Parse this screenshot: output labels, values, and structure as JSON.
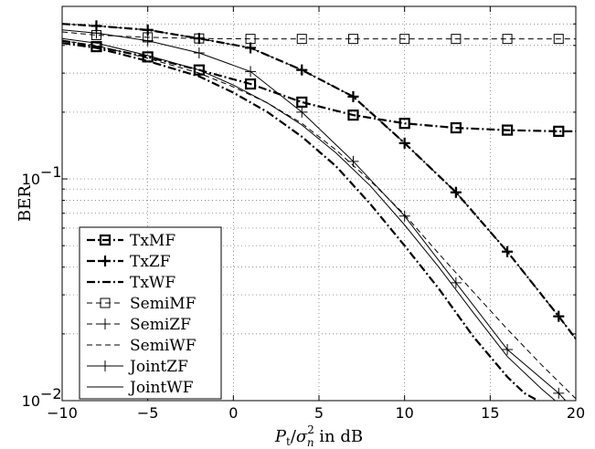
{
  "chart_data": {
    "type": "line",
    "title": "",
    "xlabel": "P_t/σ_n^2 in dB",
    "xlabel_parts": {
      "p": "P",
      "t": "t",
      "slash": "/",
      "sigma": "σ",
      "sup": "2",
      "sub": "n",
      "rest": " in dB"
    },
    "ylabel": "BER",
    "xlim": [
      -10,
      20
    ],
    "ylim": [
      0.01,
      0.6
    ],
    "yscale": "log",
    "grid": true,
    "legend_position": "bottom-left",
    "x_ticks": [
      -10,
      -5,
      0,
      5,
      10,
      15,
      20
    ],
    "x_tick_labels": [
      "−10",
      "−5",
      "0",
      "5",
      "10",
      "15",
      "20"
    ],
    "y_ticks": [
      0.01,
      0.1
    ],
    "y_tick_labels": [
      {
        "base": "10",
        "exp": "−2"
      },
      {
        "base": "10",
        "exp": "−1"
      }
    ],
    "series": [
      {
        "name": "TxMF",
        "style": "dashdot",
        "width": 2.2,
        "marker": "square",
        "x": [
          -10,
          -8,
          -5,
          -2,
          1,
          4,
          7,
          10,
          13,
          16,
          19,
          20
        ],
        "y": [
          0.42,
          0.395,
          0.355,
          0.31,
          0.268,
          0.222,
          0.194,
          0.178,
          0.17,
          0.166,
          0.164,
          0.164
        ],
        "marker_x": [
          -8,
          -5,
          -2,
          1,
          4,
          7,
          10,
          13,
          16,
          19
        ]
      },
      {
        "name": "TxZF",
        "style": "dashdot",
        "width": 2.2,
        "marker": "plus",
        "x": [
          -10,
          -8,
          -5,
          -2,
          1,
          4,
          7,
          10,
          13,
          16,
          19,
          20
        ],
        "y": [
          0.5,
          0.49,
          0.47,
          0.43,
          0.39,
          0.31,
          0.235,
          0.145,
          0.087,
          0.047,
          0.024,
          0.019
        ],
        "marker_x": [
          -8,
          -5,
          -2,
          1,
          4,
          7,
          10,
          13,
          16,
          19
        ]
      },
      {
        "name": "TxWF",
        "style": "dashdot",
        "width": 2.2,
        "marker": "none",
        "x": [
          -10,
          -8,
          -5,
          -2,
          0,
          2,
          4,
          6,
          8,
          10,
          12,
          14,
          16,
          17,
          17.8
        ],
        "y": [
          0.41,
          0.39,
          0.34,
          0.29,
          0.245,
          0.2,
          0.155,
          0.114,
          0.077,
          0.05,
          0.032,
          0.0195,
          0.0128,
          0.0108,
          0.01
        ]
      },
      {
        "name": "SemiMF",
        "style": "dashed",
        "width": 1,
        "marker": "square",
        "x": [
          -10,
          -8,
          -5,
          -2,
          1,
          4,
          7,
          10,
          13,
          16,
          19,
          20
        ],
        "y": [
          0.46,
          0.445,
          0.435,
          0.43,
          0.428,
          0.428,
          0.428,
          0.428,
          0.428,
          0.428,
          0.428,
          0.428
        ],
        "marker_x": [
          -8,
          -5,
          -2,
          1,
          4,
          7,
          10,
          13,
          16,
          19
        ]
      },
      {
        "name": "SemiZF",
        "style": "dashed",
        "width": 1,
        "marker": "plus",
        "x": [
          -10,
          -8,
          -5,
          -2,
          1,
          4,
          7,
          10,
          13,
          16,
          19,
          20
        ],
        "y": [
          0.5,
          0.49,
          0.47,
          0.43,
          0.39,
          0.31,
          0.235,
          0.145,
          0.087,
          0.047,
          0.024,
          0.019
        ],
        "marker_x": [
          -8,
          -5,
          -2,
          1,
          4,
          7,
          10,
          13,
          16,
          19
        ]
      },
      {
        "name": "SemiWF",
        "style": "dashed",
        "width": 1,
        "marker": "none",
        "x": [
          -10,
          -8,
          -5,
          -2,
          0,
          2,
          4,
          6,
          8,
          10,
          12,
          14,
          16,
          18,
          20
        ],
        "y": [
          0.42,
          0.4,
          0.35,
          0.3,
          0.26,
          0.22,
          0.178,
          0.135,
          0.098,
          0.069,
          0.046,
          0.031,
          0.021,
          0.0145,
          0.0102
        ]
      },
      {
        "name": "JointZF",
        "style": "solid",
        "width": 1,
        "marker": "plus",
        "x": [
          -10,
          -8,
          -5,
          -2,
          1,
          4,
          7,
          10,
          13,
          16,
          19,
          19.4
        ],
        "y": [
          0.47,
          0.455,
          0.42,
          0.37,
          0.305,
          0.2,
          0.12,
          0.068,
          0.034,
          0.017,
          0.0108,
          0.01
        ],
        "marker_x": [
          -8,
          -5,
          -2,
          1,
          4,
          7,
          10,
          13,
          16,
          19
        ]
      },
      {
        "name": "JointWF",
        "style": "solid",
        "width": 1,
        "marker": "none",
        "x": [
          -10,
          -8,
          -5,
          -2,
          0,
          2,
          4,
          6,
          8,
          10,
          12,
          14,
          16,
          18,
          18.8
        ],
        "y": [
          0.43,
          0.41,
          0.36,
          0.31,
          0.265,
          0.22,
          0.175,
          0.131,
          0.093,
          0.062,
          0.04,
          0.025,
          0.0158,
          0.0113,
          0.01
        ]
      }
    ]
  }
}
